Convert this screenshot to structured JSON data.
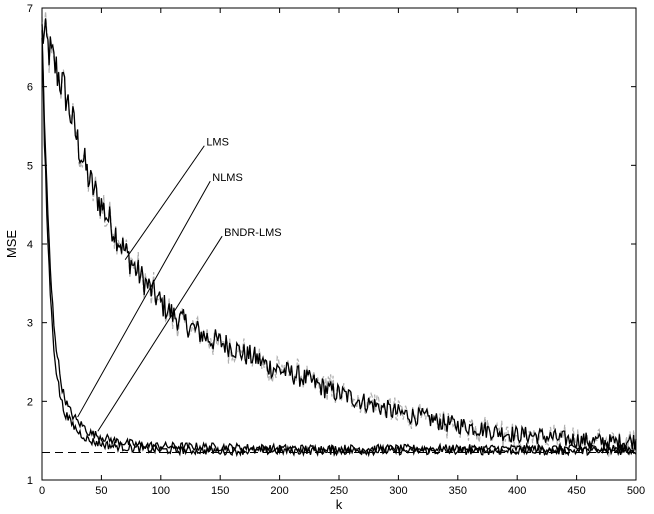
{
  "chart_data": {
    "type": "line",
    "title": "",
    "xlabel": "k",
    "ylabel": "MSE",
    "xlim": [
      0,
      500
    ],
    "ylim": [
      1,
      7
    ],
    "xticks": [
      0,
      50,
      100,
      150,
      200,
      250,
      300,
      350,
      400,
      450,
      500
    ],
    "yticks": [
      1,
      2,
      3,
      4,
      5,
      6,
      7
    ],
    "grid": false,
    "legend": "none",
    "series": [
      {
        "name": "LMS",
        "color": "#000000",
        "noisy_color": "#b0b0b0",
        "x": [
          0,
          10,
          20,
          30,
          40,
          50,
          60,
          70,
          80,
          90,
          100,
          110,
          120,
          130,
          140,
          150,
          160,
          170,
          180,
          190,
          200,
          220,
          240,
          260,
          280,
          300,
          320,
          340,
          360,
          380,
          400,
          420,
          440,
          460,
          480,
          500
        ],
        "y": [
          6.7,
          6.3,
          5.9,
          5.3,
          4.8,
          4.5,
          4.2,
          3.9,
          3.65,
          3.45,
          3.25,
          3.1,
          3.0,
          2.9,
          2.8,
          2.75,
          2.7,
          2.6,
          2.55,
          2.45,
          2.4,
          2.3,
          2.15,
          2.05,
          1.95,
          1.85,
          1.8,
          1.72,
          1.68,
          1.62,
          1.58,
          1.56,
          1.52,
          1.5,
          1.48,
          1.5
        ]
      },
      {
        "name": "NLMS",
        "color": "#000000",
        "x": [
          0,
          2,
          4,
          6,
          8,
          10,
          12,
          15,
          18,
          22,
          26,
          30,
          35,
          40,
          50,
          60,
          80,
          100,
          150,
          200,
          300,
          400,
          500
        ],
        "y": [
          6.7,
          5.6,
          4.7,
          4.0,
          3.4,
          3.0,
          2.7,
          2.35,
          2.1,
          1.92,
          1.82,
          1.74,
          1.68,
          1.6,
          1.55,
          1.5,
          1.45,
          1.43,
          1.42,
          1.4,
          1.4,
          1.4,
          1.4
        ]
      },
      {
        "name": "BNDR-LMS",
        "color": "#000000",
        "x": [
          0,
          2,
          4,
          6,
          8,
          10,
          12,
          15,
          18,
          22,
          26,
          30,
          35,
          40,
          50,
          60,
          80,
          100,
          150,
          200,
          300,
          400,
          500
        ],
        "y": [
          6.6,
          5.3,
          4.4,
          3.7,
          3.1,
          2.7,
          2.4,
          2.1,
          1.9,
          1.78,
          1.7,
          1.62,
          1.56,
          1.5,
          1.46,
          1.43,
          1.4,
          1.38,
          1.37,
          1.37,
          1.37,
          1.37,
          1.37
        ]
      },
      {
        "name": "",
        "style": "dashed",
        "color": "#000000",
        "x": [
          0,
          500
        ],
        "y": [
          1.35,
          1.35
        ]
      }
    ],
    "annotations": [
      {
        "text": "LMS",
        "x": 140,
        "y": 5.3,
        "points_to": [
          70,
          3.8
        ]
      },
      {
        "text": "NLMS",
        "x": 145,
        "y": 4.85,
        "points_to": [
          30,
          1.8
        ]
      },
      {
        "text": "BNDR-LMS",
        "x": 155,
        "y": 4.15,
        "points_to": [
          47,
          1.62
        ]
      }
    ]
  }
}
